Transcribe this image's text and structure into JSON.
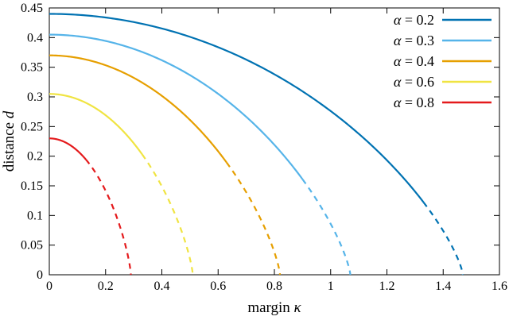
{
  "figure": {
    "background": "#ffffff",
    "frame_color": "#000000",
    "text_color": "#000000"
  },
  "chart_data": {
    "type": "line",
    "title": "",
    "xlabel": {
      "plain": "margin",
      "var": "κ",
      "full": "margin κ"
    },
    "ylabel": {
      "plain": "distance",
      "var": "d",
      "full": "distance d"
    },
    "xlim": [
      0,
      1.6
    ],
    "ylim": [
      0,
      0.45
    ],
    "x_ticks": {
      "values": [
        0,
        0.2,
        0.4,
        0.6,
        0.8,
        1,
        1.2,
        1.4,
        1.6
      ],
      "labels": [
        "0",
        "0.2",
        "0.4",
        "0.6",
        "0.8",
        "1",
        "1.2",
        "1.4",
        "1.6"
      ]
    },
    "y_ticks": {
      "values": [
        0,
        0.05,
        0.1,
        0.15,
        0.2,
        0.25,
        0.3,
        0.35,
        0.4,
        0.45
      ],
      "labels": [
        "0",
        "0.05",
        "0.1",
        "0.15",
        "0.2",
        "0.25",
        "0.3",
        "0.35",
        "0.4",
        "0.45"
      ]
    },
    "grid": false,
    "legend_position": "top-right-inside",
    "curve_model": "d(kappa) = d0 * (1 - (kappa/kappa_max)^2)^0.75 ; line drawn solid for kappa <= solid_until, dashed beyond",
    "series": [
      {
        "label": "α = 0.2",
        "var": "α",
        "value": "0.2",
        "color": "#0072B2",
        "d0": 0.44,
        "kappa_max": 1.47,
        "solid_until": 1.33,
        "key_points": [
          [
            0,
            0.44
          ],
          [
            1.33,
            0.122
          ],
          [
            1.47,
            0
          ]
        ],
        "tail_style": "dashed"
      },
      {
        "label": "α = 0.3",
        "var": "α",
        "value": "0.3",
        "color": "#56B4E9",
        "d0": 0.405,
        "kappa_max": 1.07,
        "solid_until": 0.9,
        "key_points": [
          [
            0,
            0.405
          ],
          [
            0.9,
            0.161
          ],
          [
            1.07,
            0
          ]
        ],
        "tail_style": "dashed"
      },
      {
        "label": "α = 0.4",
        "var": "α",
        "value": "0.4",
        "color": "#E69F00",
        "d0": 0.37,
        "kappa_max": 0.82,
        "solid_until": 0.63,
        "key_points": [
          [
            0,
            0.37
          ],
          [
            0.63,
            0.19
          ],
          [
            0.82,
            0
          ]
        ],
        "tail_style": "dashed"
      },
      {
        "label": "α = 0.6",
        "var": "α",
        "value": "0.6",
        "color": "#F0E442",
        "d0": 0.305,
        "kappa_max": 0.51,
        "solid_until": 0.33,
        "key_points": [
          [
            0,
            0.305
          ],
          [
            0.33,
            0.203
          ],
          [
            0.51,
            0
          ]
        ],
        "tail_style": "dashed"
      },
      {
        "label": "α = 0.8",
        "var": "α",
        "value": "0.8",
        "color": "#E41A1C",
        "d0": 0.23,
        "kappa_max": 0.29,
        "solid_until": 0.13,
        "key_points": [
          [
            0,
            0.23
          ],
          [
            0.13,
            0.194
          ],
          [
            0.29,
            0
          ]
        ],
        "tail_style": "dashed"
      }
    ]
  }
}
